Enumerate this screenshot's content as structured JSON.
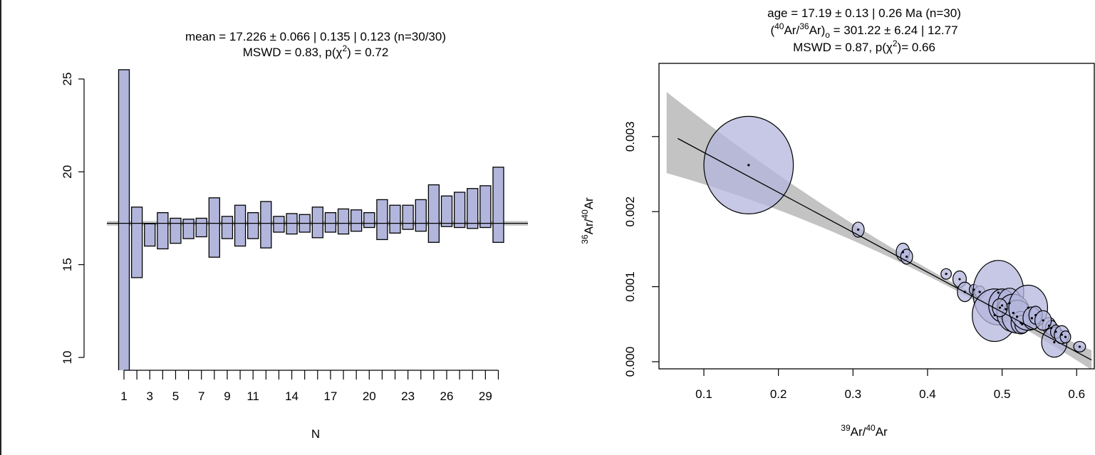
{
  "style": {
    "fill": "#b3b6dc",
    "fill_dark": "#8c90c4",
    "line": "#000000",
    "band": "#bdbdbd"
  },
  "chart_data": [
    {
      "type": "bar",
      "title_line1": "mean = 17.226 ± 0.066 | 0.135 | 0.123  (n=30/30)",
      "title_line2_pre": "MSWD = 0.83, p(χ",
      "title_line2_sup": "2",
      "title_line2_post": ") = 0.72",
      "xlabel": "N",
      "ylabel": "",
      "ylim": [
        10,
        25
      ],
      "yticks": [
        "10",
        "15",
        "20",
        "25"
      ],
      "xticks": [
        "1",
        "3",
        "5",
        "7",
        "9",
        "11",
        "14",
        "17",
        "20",
        "23",
        "26",
        "29"
      ],
      "mean": 17.226,
      "mean_band": [
        17.1,
        17.35
      ],
      "series": [
        {
          "lower": [
            9.0,
            14.3,
            16.0,
            15.85,
            16.15,
            16.4,
            16.5,
            15.4,
            16.4,
            16.0,
            16.4,
            15.9,
            16.75,
            16.65,
            16.75,
            16.45,
            16.75,
            16.65,
            16.8,
            17.0,
            16.35,
            16.7,
            16.9,
            16.8,
            16.2,
            17.05,
            17.0,
            16.95,
            17.0,
            16.2
          ],
          "upper": [
            25.5,
            18.1,
            17.2,
            17.8,
            17.5,
            17.45,
            17.5,
            18.6,
            17.6,
            18.2,
            17.8,
            18.4,
            17.6,
            17.75,
            17.7,
            18.1,
            17.8,
            18.0,
            17.95,
            17.8,
            18.5,
            18.2,
            18.2,
            18.5,
            19.3,
            18.7,
            18.9,
            19.1,
            19.25,
            20.25
          ]
        }
      ]
    },
    {
      "type": "scatter",
      "title_line1": "age = 17.19 ± 0.13 | 0.26 Ma (n=30)",
      "title_line2_open": "(",
      "title_line2_sup1": "40",
      "title_line2_mid1": "Ar/",
      "title_line2_sup2": "36",
      "title_line2_mid2": "Ar)",
      "title_line2_sub": "o",
      "title_line2_post": " =  301.22 ± 6.24 | 12.77",
      "title_line3": "MSWD = 0.87, p(χ",
      "title_line3_sup": "2",
      "title_line3_post": ")= 0.66",
      "xlabel_sup": "39",
      "xlabel_text": "Ar/",
      "xlabel_sup2": "40",
      "xlabel_text2": "Ar",
      "ylabel_sup": "36",
      "ylabel_text": "Ar/",
      "ylabel_sup2": "40",
      "ylabel_text2": "Ar",
      "xlim": [
        0.05,
        0.62
      ],
      "ylim": [
        -0.0001,
        0.0035
      ],
      "xticks": [
        "0.1",
        "0.2",
        "0.3",
        "0.4",
        "0.5",
        "0.6"
      ],
      "yticks": [
        "0.000",
        "0.001",
        "0.002",
        "0.003"
      ],
      "regression": {
        "intercept": 0.00332,
        "slope": -0.005318
      },
      "points": [
        {
          "x": 0.16,
          "y": 0.00262,
          "rx": 0.06,
          "ry": 0.00065
        },
        {
          "x": 0.307,
          "y": 0.00176,
          "rx": 0.008,
          "ry": 0.0001
        },
        {
          "x": 0.367,
          "y": 0.00146,
          "rx": 0.009,
          "ry": 0.00012
        },
        {
          "x": 0.372,
          "y": 0.0014,
          "rx": 0.008,
          "ry": 0.0001
        },
        {
          "x": 0.425,
          "y": 0.00117,
          "rx": 0.007,
          "ry": 7e-05
        },
        {
          "x": 0.443,
          "y": 0.0011,
          "rx": 0.009,
          "ry": 0.00011
        },
        {
          "x": 0.45,
          "y": 0.00093,
          "rx": 0.01,
          "ry": 0.00013
        },
        {
          "x": 0.462,
          "y": 0.00096,
          "rx": 0.006,
          "ry": 7e-05
        },
        {
          "x": 0.47,
          "y": 0.00093,
          "rx": 0.007,
          "ry": 8e-05
        },
        {
          "x": 0.495,
          "y": 0.00092,
          "rx": 0.034,
          "ry": 0.00043
        },
        {
          "x": 0.49,
          "y": 0.00062,
          "rx": 0.03,
          "ry": 0.00035
        },
        {
          "x": 0.5,
          "y": 0.00075,
          "rx": 0.018,
          "ry": 0.00022
        },
        {
          "x": 0.505,
          "y": 0.0007,
          "rx": 0.012,
          "ry": 0.00015
        },
        {
          "x": 0.51,
          "y": 0.00078,
          "rx": 0.016,
          "ry": 0.0002
        },
        {
          "x": 0.515,
          "y": 0.00065,
          "rx": 0.022,
          "ry": 0.00025
        },
        {
          "x": 0.52,
          "y": 0.0006,
          "rx": 0.02,
          "ry": 0.00022
        },
        {
          "x": 0.525,
          "y": 0.00052,
          "rx": 0.013,
          "ry": 0.00015
        },
        {
          "x": 0.527,
          "y": 0.0005,
          "rx": 0.01,
          "ry": 0.00012
        },
        {
          "x": 0.535,
          "y": 0.00072,
          "rx": 0.026,
          "ry": 0.0003
        },
        {
          "x": 0.54,
          "y": 0.00058,
          "rx": 0.012,
          "ry": 0.00015
        },
        {
          "x": 0.545,
          "y": 0.00062,
          "rx": 0.009,
          "ry": 0.00012
        },
        {
          "x": 0.563,
          "y": 0.00048,
          "rx": 0.009,
          "ry": 0.00011
        },
        {
          "x": 0.566,
          "y": 0.00045,
          "rx": 0.008,
          "ry": 0.0001
        },
        {
          "x": 0.57,
          "y": 0.00026,
          "rx": 0.017,
          "ry": 0.0002
        },
        {
          "x": 0.572,
          "y": 0.0004,
          "rx": 0.007,
          "ry": 9e-05
        },
        {
          "x": 0.58,
          "y": 0.00036,
          "rx": 0.01,
          "ry": 0.00012
        },
        {
          "x": 0.585,
          "y": 0.00033,
          "rx": 0.007,
          "ry": 8e-05
        },
        {
          "x": 0.604,
          "y": 0.0002,
          "rx": 0.008,
          "ry": 7e-05
        },
        {
          "x": 0.497,
          "y": 0.00072,
          "rx": 0.01,
          "ry": 0.00012
        },
        {
          "x": 0.555,
          "y": 0.00055,
          "rx": 0.011,
          "ry": 0.00013
        }
      ]
    }
  ]
}
